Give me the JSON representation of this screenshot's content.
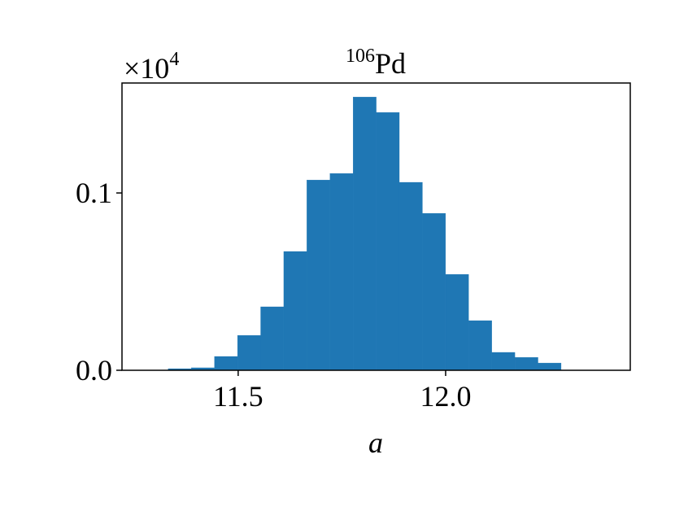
{
  "chart_data": {
    "type": "histogram",
    "title": {
      "mass_number": "106",
      "element": "Pd"
    },
    "x_label": "a",
    "y_offset": {
      "base": "×10",
      "exponent": "4"
    },
    "bins": [
      11.3314,
      11.3871,
      11.4428,
      11.4985,
      11.5542,
      11.6099,
      11.6656,
      11.7213,
      11.777,
      11.8327,
      11.8884,
      11.9441,
      11.9998,
      12.0555,
      12.1112,
      12.1669,
      12.2226,
      12.2783
    ],
    "values": [
      0.0009,
      0.0014,
      0.0078,
      0.0197,
      0.0358,
      0.067,
      0.1073,
      0.111,
      0.1541,
      0.1454,
      0.106,
      0.0885,
      0.0541,
      0.028,
      0.0101,
      0.0073,
      0.0041
    ],
    "color": "#1f77b4",
    "xlim": [
      11.22,
      12.445
    ],
    "xticks": [
      11.5,
      {
        "value": 12,
        "label": "12.0"
      }
    ],
    "ylim": [
      0,
      0.162
    ],
    "yticks": [
      {
        "value": 0,
        "label": "0.0"
      },
      0.1
    ]
  }
}
